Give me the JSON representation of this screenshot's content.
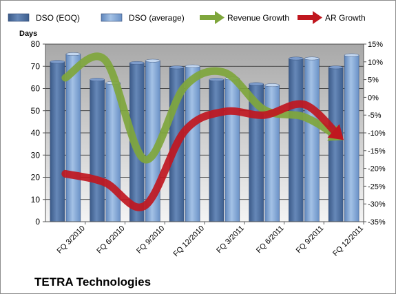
{
  "chart_data": {
    "type": "bar",
    "title": "TETRA Technologies",
    "ylabel": "Days",
    "categories": [
      "FQ 3/2010",
      "FQ 6/2010",
      "FQ 9/2010",
      "FQ 12/2010",
      "FQ 3/2011",
      "FQ 6/2011",
      "FQ 9/2011",
      "FQ 12/2011"
    ],
    "ylim": [
      0,
      80
    ],
    "yticks": [
      "0",
      "10",
      "20",
      "30",
      "40",
      "50",
      "60",
      "70",
      "80"
    ],
    "y2lim": [
      -35,
      15
    ],
    "y2ticks": [
      "-35%",
      "-30%",
      "-25%",
      "-20%",
      "-15%",
      "-10%",
      "-5%",
      "0%",
      "5%",
      "10%",
      "15%"
    ],
    "grid": true,
    "legend_position": "top",
    "series": [
      {
        "name": "DSO (EOQ)",
        "kind": "bar",
        "axis": "left",
        "color": "#4a6c9e",
        "values": [
          72,
          64,
          71.5,
          69.5,
          64,
          62,
          73.5,
          69.5
        ]
      },
      {
        "name": "DSO (average)",
        "kind": "bar",
        "axis": "left",
        "color": "#7fa6d6",
        "values": [
          75.5,
          62.5,
          72.5,
          70,
          64.5,
          61.5,
          73.5,
          75
        ]
      },
      {
        "name": "Revenue Growth",
        "kind": "line-arrow",
        "axis": "right",
        "color": "#7fa63c",
        "values": [
          5.5,
          10.5,
          -17.5,
          3,
          7,
          -3.5,
          -5.5,
          -12
        ]
      },
      {
        "name": "AR Growth",
        "kind": "line-arrow",
        "axis": "right",
        "color": "#c0171f",
        "values": [
          -21.5,
          -24,
          -30.5,
          -9.5,
          -4,
          -5,
          -2,
          -12
        ]
      }
    ]
  }
}
